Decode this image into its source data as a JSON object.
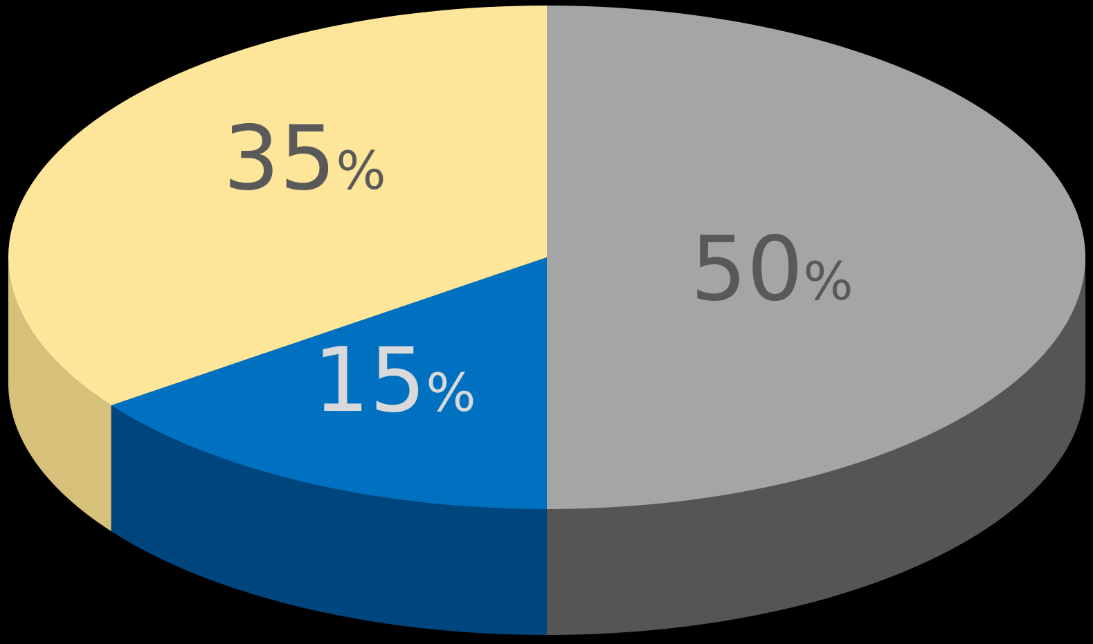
{
  "chart_data": {
    "type": "pie",
    "style": "3d",
    "slices": [
      {
        "value": 50,
        "label": "50",
        "suffix": "%",
        "color": "#a5a5a5",
        "side_color": "#555555",
        "label_color": "#595959"
      },
      {
        "value": 15,
        "label": "15",
        "suffix": "%",
        "color": "#0070c0",
        "side_color": "#00467e",
        "label_color": "#d9d9d9"
      },
      {
        "value": 35,
        "label": "35",
        "suffix": "%",
        "color": "#fde59a",
        "side_color": "#d6c07a",
        "label_color": "#595959"
      }
    ]
  },
  "colors": {
    "background": "#000000"
  }
}
